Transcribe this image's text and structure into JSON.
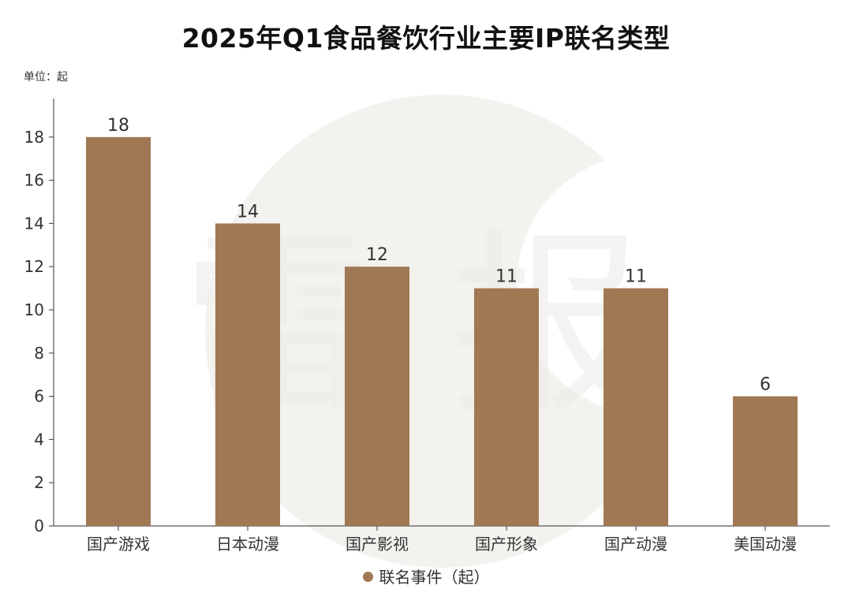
{
  "chart_data": {
    "type": "bar",
    "title": "2025年Q1食品餐饮行业主要IP联名类型",
    "unit_label": "单位：起",
    "categories": [
      "国产游戏",
      "日本动漫",
      "国产影视",
      "国产形象",
      "国产动漫",
      "美国动漫"
    ],
    "series": [
      {
        "name": "联名事件（起）",
        "values": [
          18,
          14,
          12,
          11,
          11,
          6
        ],
        "color": "#a07853"
      }
    ],
    "ylim": [
      0,
      20
    ],
    "yticks": [
      0,
      2,
      4,
      6,
      8,
      10,
      12,
      14,
      16,
      18
    ],
    "grid": false,
    "legend": "bottom-center",
    "data_labels": true
  },
  "watermark": {
    "chars": [
      "雷",
      "报"
    ]
  }
}
